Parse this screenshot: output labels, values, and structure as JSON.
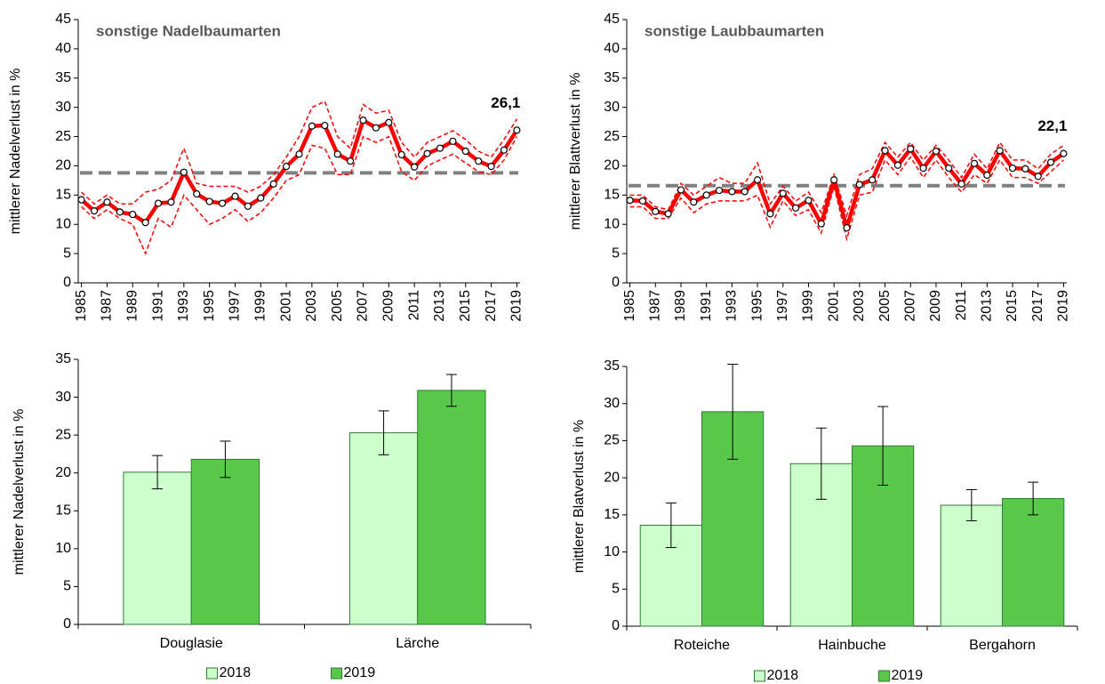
{
  "chart_data": [
    {
      "type": "line",
      "title": "sonstige Nadelbaumarten",
      "ylabel": "mittlerer Nadelverlust in %",
      "x": [
        1985,
        1986,
        1987,
        1988,
        1989,
        1990,
        1991,
        1992,
        1993,
        1994,
        1995,
        1996,
        1997,
        1998,
        1999,
        2000,
        2001,
        2002,
        2003,
        2004,
        2005,
        2006,
        2007,
        2008,
        2009,
        2010,
        2011,
        2012,
        2013,
        2014,
        2015,
        2016,
        2017,
        2018,
        2019
      ],
      "values": [
        14.2,
        12.3,
        13.8,
        12.1,
        11.7,
        10.3,
        13.6,
        13.8,
        18.9,
        15.2,
        13.9,
        13.6,
        14.8,
        13.1,
        14.5,
        16.9,
        19.9,
        22.0,
        26.8,
        26.9,
        22.0,
        20.8,
        27.8,
        26.5,
        27.4,
        21.9,
        19.8,
        22.1,
        23.0,
        24.2,
        22.5,
        20.8,
        19.9,
        22.7,
        26.1
      ],
      "value_labels": [
        null,
        null,
        null,
        null,
        null,
        null,
        null,
        null,
        null,
        null,
        null,
        null,
        null,
        null,
        null,
        null,
        null,
        null,
        null,
        null,
        null,
        null,
        null,
        null,
        null,
        null,
        null,
        null,
        null,
        null,
        null,
        null,
        null,
        null,
        "26,1"
      ],
      "upper": [
        15.5,
        13.5,
        15,
        13.5,
        13.5,
        15.5,
        16,
        17.5,
        23,
        17,
        16.5,
        16.5,
        16.5,
        15.5,
        16.5,
        18.5,
        21.5,
        25,
        30,
        31,
        25,
        23,
        30.5,
        29,
        29.5,
        24,
        21.5,
        24,
        25,
        26,
        24.5,
        22.5,
        21.5,
        24.5,
        28
      ],
      "lower": [
        13,
        11,
        12.5,
        11,
        10,
        5,
        11,
        9.5,
        15,
        12.5,
        10,
        11,
        12.5,
        10.5,
        12,
        14.5,
        17.5,
        18.5,
        23.5,
        23,
        18.5,
        18.5,
        25,
        24,
        25,
        19,
        17.5,
        20,
        21,
        22,
        20.5,
        19,
        18.5,
        21,
        25
      ],
      "mean": 18.8,
      "color": "#ff0000",
      "mean_color": "#808080",
      "xlim": [
        1984.75,
        2019.25
      ],
      "xticks": [
        1985,
        1987,
        1989,
        1991,
        1993,
        1995,
        1997,
        1999,
        2001,
        2003,
        2005,
        2007,
        2009,
        2011,
        2013,
        2015,
        2017,
        2019
      ],
      "ylim": [
        0,
        45
      ],
      "yticks": [
        0,
        5,
        10,
        15,
        20,
        25,
        30,
        35,
        40,
        45
      ]
    },
    {
      "type": "line",
      "title": "sonstige Laubbaumarten",
      "ylabel": "mittlerer Blattverlust in %",
      "x": [
        1985,
        1986,
        1987,
        1988,
        1989,
        1990,
        1991,
        1992,
        1993,
        1994,
        1995,
        1996,
        1997,
        1998,
        1999,
        2000,
        2001,
        2002,
        2003,
        2004,
        2005,
        2006,
        2007,
        2008,
        2009,
        2010,
        2011,
        2012,
        2013,
        2014,
        2015,
        2016,
        2017,
        2018,
        2019
      ],
      "values": [
        14.1,
        14.0,
        12.2,
        11.8,
        15.9,
        13.8,
        15.0,
        15.8,
        15.6,
        15.6,
        17.6,
        11.8,
        15.3,
        12.8,
        14.1,
        10.1,
        17.6,
        9.4,
        16.8,
        17.6,
        22.6,
        20.1,
        22.9,
        19.6,
        22.5,
        19.6,
        16.9,
        20.4,
        18.4,
        22.6,
        19.6,
        19.5,
        18.2,
        20.6,
        22.1
      ],
      "value_labels": [
        null,
        null,
        null,
        null,
        null,
        null,
        null,
        null,
        null,
        null,
        null,
        null,
        null,
        null,
        null,
        null,
        null,
        null,
        null,
        null,
        null,
        null,
        null,
        null,
        null,
        null,
        null,
        null,
        null,
        null,
        null,
        null,
        null,
        null,
        "22,1"
      ],
      "upper": [
        15,
        15,
        13,
        12.5,
        17,
        15,
        16.5,
        18,
        17,
        17,
        20.5,
        13.5,
        16.5,
        14,
        15.5,
        12,
        18.5,
        11.5,
        18.5,
        19.5,
        24,
        21.5,
        24,
        21,
        23.5,
        21,
        18,
        22,
        19.5,
        24,
        21,
        21,
        19.5,
        22,
        23.5
      ],
      "lower": [
        13,
        13,
        11,
        11,
        14.5,
        12,
        13.5,
        14,
        14,
        14,
        15,
        9.5,
        14,
        11.5,
        12.5,
        8.5,
        16.5,
        7.5,
        15,
        15.5,
        21,
        18.5,
        21.5,
        18,
        21,
        18,
        15.5,
        18.5,
        17,
        21,
        18,
        18,
        17,
        19,
        21
      ],
      "mean": 16.6,
      "color": "#ff0000",
      "mean_color": "#808080",
      "xlim": [
        1984.75,
        2019.25
      ],
      "xticks": [
        1985,
        1987,
        1989,
        1991,
        1993,
        1995,
        1997,
        1999,
        2001,
        2003,
        2005,
        2007,
        2009,
        2011,
        2013,
        2015,
        2017,
        2019
      ],
      "ylim": [
        0,
        45
      ],
      "yticks": [
        0,
        5,
        10,
        15,
        20,
        25,
        30,
        35,
        40,
        45
      ]
    },
    {
      "type": "bar",
      "ylabel": "mittlerer Nadelverlust in %",
      "categories": [
        "Douglasie",
        "Lärche"
      ],
      "series": [
        {
          "name": "2018",
          "color": "#ccffcc",
          "values": [
            20.1,
            25.3
          ],
          "errors": [
            2.2,
            2.9
          ]
        },
        {
          "name": "2019",
          "color": "#5ac84a",
          "values": [
            21.8,
            30.9
          ],
          "errors": [
            2.4,
            2.1
          ]
        }
      ],
      "ylim": [
        0,
        35
      ],
      "yticks": [
        0,
        5,
        10,
        15,
        20,
        25,
        30,
        35
      ]
    },
    {
      "type": "bar",
      "ylabel": "mittlerer Blatverlust  in %",
      "categories": [
        "Roteiche",
        "Hainbuche",
        "Bergahorn"
      ],
      "series": [
        {
          "name": "2018",
          "color": "#ccffcc",
          "values": [
            13.6,
            21.9,
            16.3
          ],
          "errors": [
            3.0,
            4.8,
            2.1
          ]
        },
        {
          "name": "2019",
          "color": "#5ac84a",
          "values": [
            28.9,
            24.3,
            17.2
          ],
          "errors": [
            6.4,
            5.3,
            2.2
          ]
        }
      ],
      "ylim": [
        0,
        35
      ],
      "yticks": [
        0,
        5,
        10,
        15,
        20,
        25,
        30,
        35
      ]
    }
  ]
}
